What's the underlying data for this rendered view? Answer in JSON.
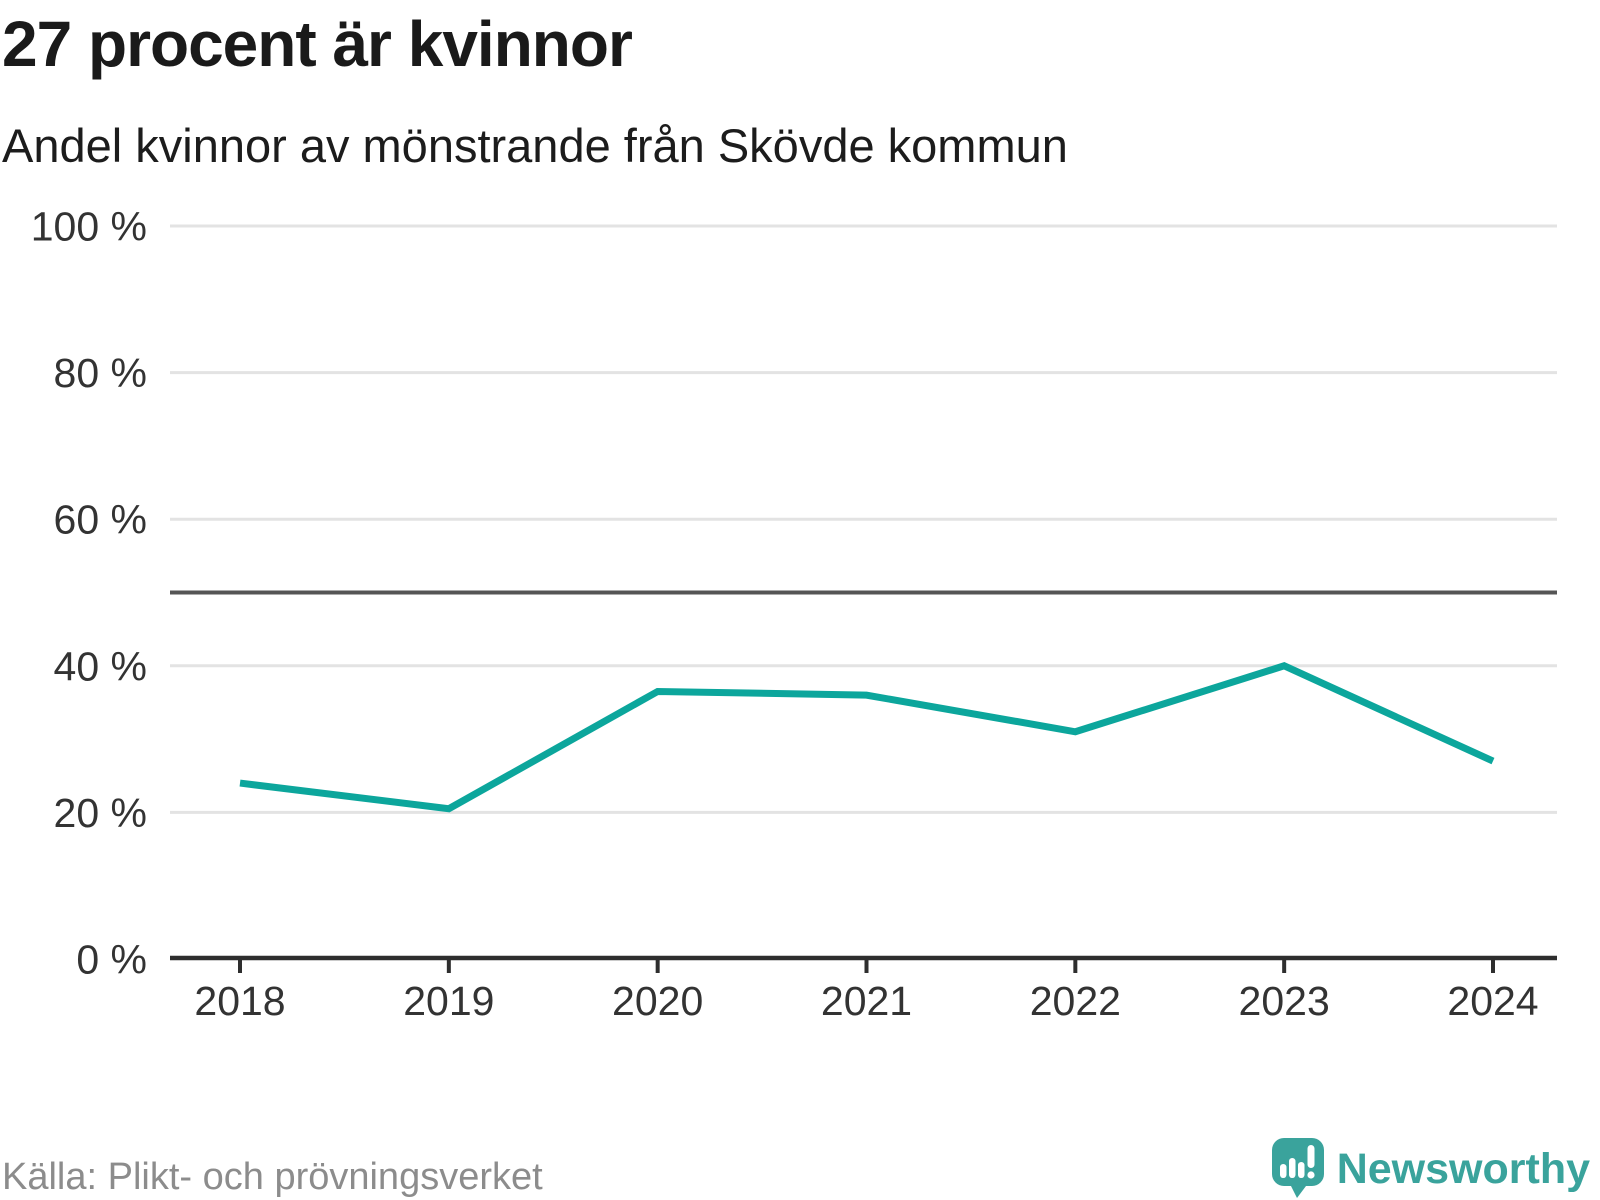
{
  "header": {
    "title": "27 procent är kvinnor",
    "subtitle": "Andel kvinnor av mönstrande från Skövde kommun"
  },
  "chart_data": {
    "type": "line",
    "x": [
      2018,
      2019,
      2020,
      2021,
      2022,
      2023,
      2024
    ],
    "values": [
      24,
      20.5,
      36.5,
      36,
      31,
      40,
      27
    ],
    "title": "27 procent är kvinnor",
    "subtitle": "Andel kvinnor av mönstrande från Skövde kommun",
    "ylim": [
      0,
      100
    ],
    "yticks": [
      0,
      20,
      40,
      60,
      80,
      100
    ],
    "ytick_suffix": " %",
    "reference_line": 50,
    "grid": "horizontal-only",
    "legend": "none"
  },
  "footer": {
    "source": "Källa: Plikt- och prövningsverket",
    "logo_text": "Newsworthy"
  },
  "colors": {
    "accent": "#0ca69c",
    "logo": "#3aa39c",
    "title_text": "#1a1a1a",
    "axis_text": "#333333",
    "grid": "#e3e3e3",
    "reference": "#555555",
    "axis": "#2e2e2e",
    "source_text": "#8c8c8c"
  }
}
